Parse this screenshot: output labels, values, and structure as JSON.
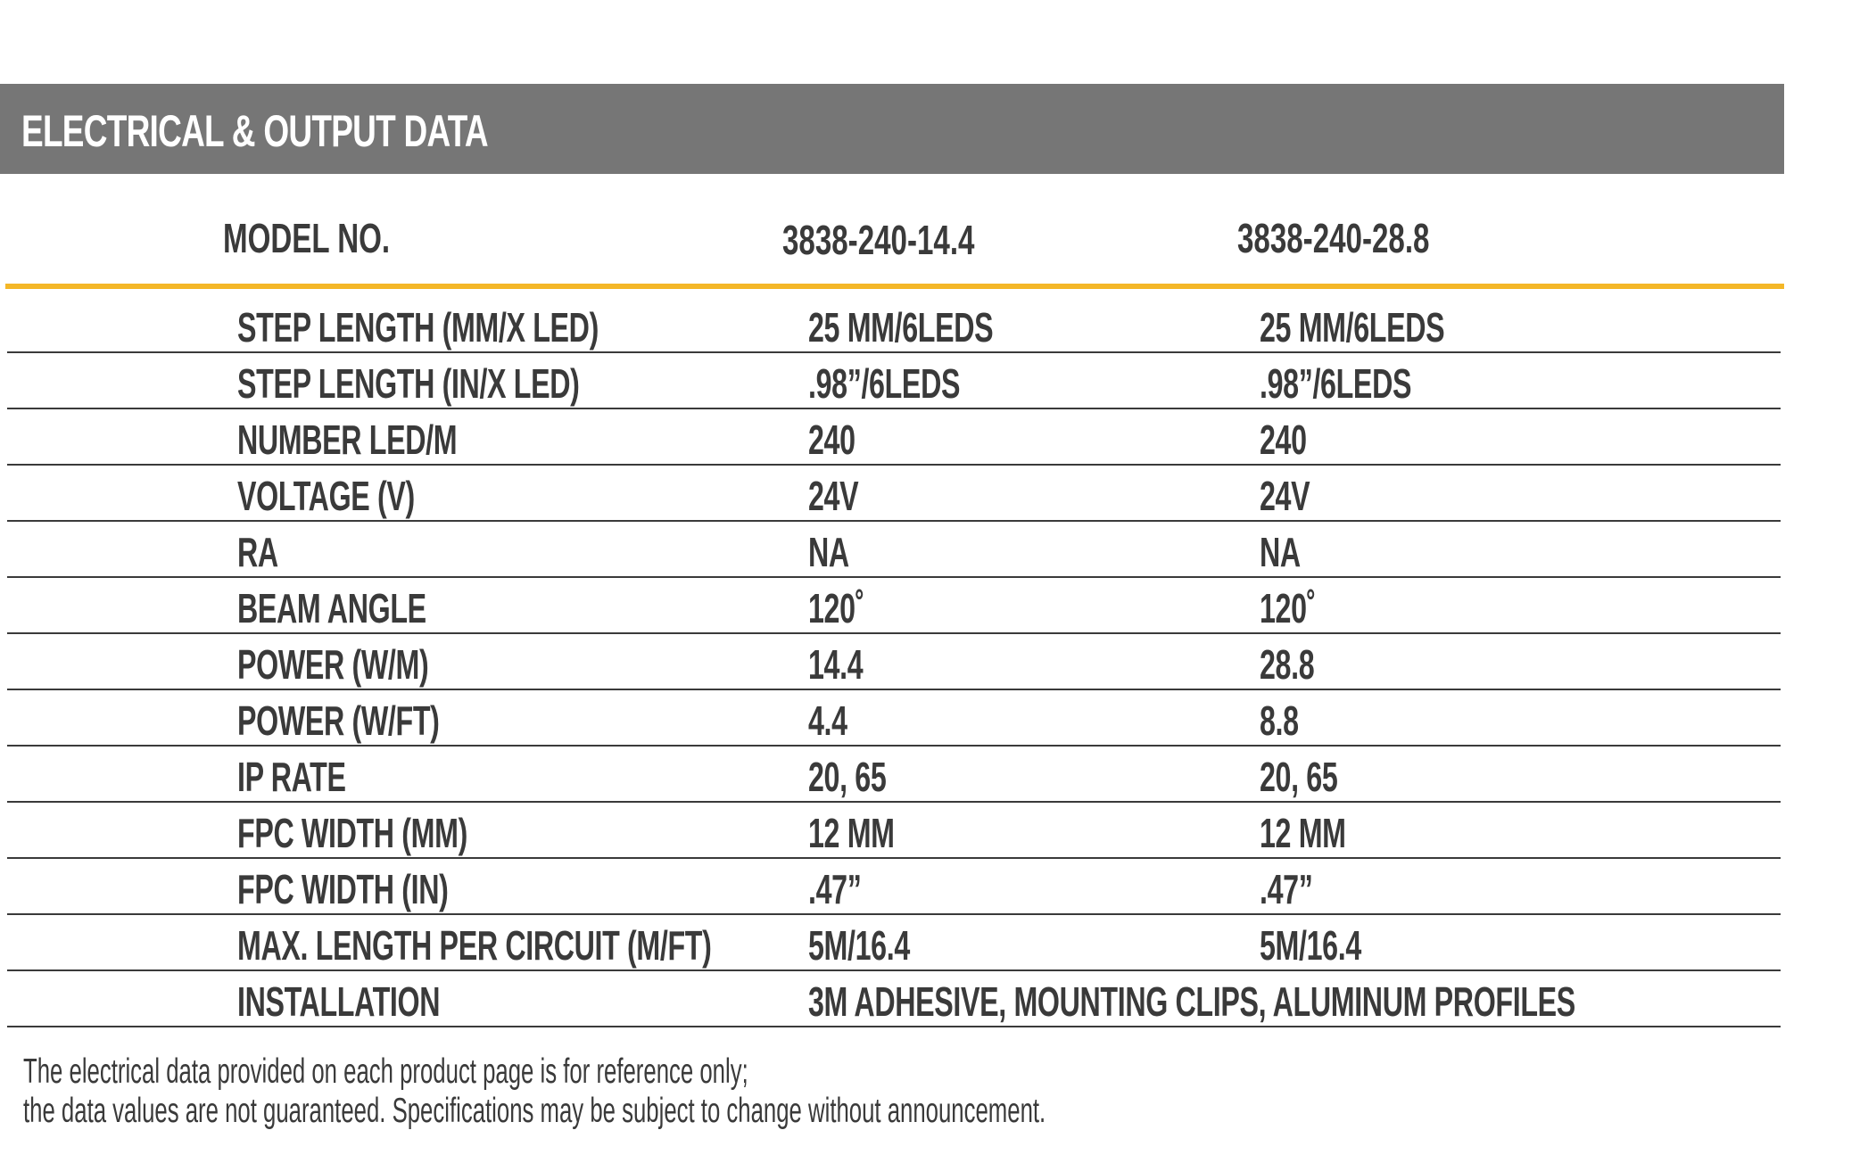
{
  "section": {
    "title": "ELECTRICAL & OUTPUT DATA"
  },
  "models": {
    "label": "MODEL NO.",
    "values": [
      "3838-240-14.4",
      "3838-240-28.8"
    ]
  },
  "rows": [
    {
      "label": "STEP LENGTH (MM/X LED)",
      "v1": "25 MM/6LEDS",
      "v2": "25 MM/6LEDS"
    },
    {
      "label": "STEP LENGTH (IN/X LED)",
      "v1": ".98”/6LEDS",
      "v2": ".98”/6LEDS"
    },
    {
      "label": "NUMBER  LED/M",
      "v1": "240",
      "v2": "240"
    },
    {
      "label": "VOLTAGE (V)",
      "v1": "24V",
      "v2": "24V"
    },
    {
      "label": "RA",
      "v1": "NA",
      "v2": "NA"
    },
    {
      "label": "BEAM ANGLE",
      "v1": "120˚",
      "v2": "120˚"
    },
    {
      "label": "POWER (W/M)",
      "v1": "14.4",
      "v2": "28.8"
    },
    {
      "label": "POWER (W/FT)",
      "v1": "4.4",
      "v2": "8.8"
    },
    {
      "label": "IP RATE",
      "v1": "20, 65",
      "v2": "20, 65"
    },
    {
      "label": "FPC WIDTH (MM)",
      "v1": "12 MM",
      "v2": "12 MM"
    },
    {
      "label": "FPC WIDTH (IN)",
      "v1": ".47”",
      "v2": ".47”"
    },
    {
      "label": "MAX. LENGTH  PER CIRCUIT (M/FT)",
      "v1": "5M/16.4",
      "v2": "5M/16.4"
    },
    {
      "label": "INSTALLATION",
      "v1": "3M ADHESIVE, MOUNTING CLIPS, ALUMINUM PROFILES",
      "v2": ""
    }
  ],
  "footnote": {
    "line1": "The electrical data provided on each product page is for reference only;",
    "line2": "the data values are not guaranteed. Specifications may be subject to change without announcement."
  },
  "colors": {
    "header_bg": "#767676",
    "accent": "#f4b728",
    "text": "#3a3a3a"
  }
}
